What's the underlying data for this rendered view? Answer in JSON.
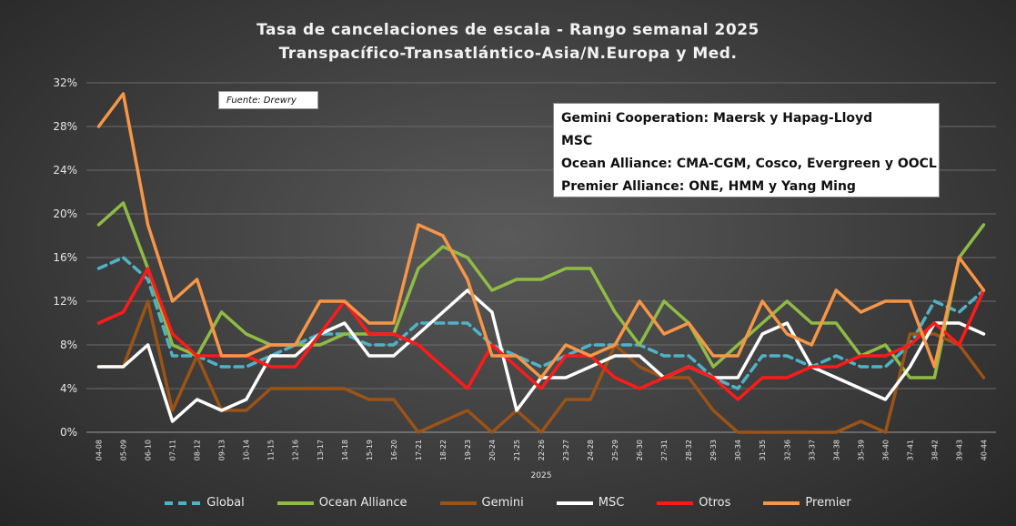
{
  "title": {
    "line1": "Tasa de cancelaciones  de escala  - Rango semanal  2025",
    "line2": "Transpacífico-Transatlántico-Asia/N.Europa  y Med."
  },
  "source": "Fuente: Drewry",
  "alliances": [
    "Gemini Cooperation: Maersk y Hapag-Lloyd",
    "MSC",
    "Ocean Alliance: CMA-CGM, Cosco, Evergreen y OOCL",
    "Premier Alliance: ONE, HMM y Yang Ming"
  ],
  "chart_data": {
    "type": "line",
    "title": "Tasa de cancelaciones  de escala  - Rango semanal  2025",
    "xlabel": "2025",
    "ylabel": "",
    "ylim": [
      0,
      0.32
    ],
    "yticks": [
      "0%",
      "4%",
      "8%",
      "12%",
      "16%",
      "20%",
      "24%",
      "28%",
      "32%"
    ],
    "grid": true,
    "legend_position": "bottom",
    "categories": [
      "04-08",
      "05-09",
      "06-10",
      "07-11",
      "08-12",
      "09-13",
      "10-14",
      "11-15",
      "12-16",
      "13-17",
      "14-18",
      "15-19",
      "16-20",
      "17-21",
      "18-22",
      "19-23",
      "20-24",
      "21-25",
      "22-26",
      "23-27",
      "24-28",
      "25-29",
      "26-30",
      "27-31",
      "28-32",
      "29-33",
      "30-34",
      "31-35",
      "32-36",
      "33-37",
      "34-38",
      "35-39",
      "36-40",
      "37-41",
      "38-42",
      "39-43",
      "40-44"
    ],
    "series": [
      {
        "name": "Global",
        "color": "#4fb3c8",
        "dash": true,
        "values": [
          0.15,
          0.16,
          0.14,
          0.07,
          0.07,
          0.06,
          0.06,
          0.07,
          0.08,
          0.09,
          0.09,
          0.08,
          0.08,
          0.1,
          0.1,
          0.1,
          0.08,
          0.07,
          0.06,
          0.07,
          0.08,
          0.08,
          0.08,
          0.07,
          0.07,
          0.05,
          0.04,
          0.07,
          0.07,
          0.06,
          0.07,
          0.06,
          0.06,
          0.08,
          0.12,
          0.11,
          0.13
        ]
      },
      {
        "name": "Ocean Alliance",
        "color": "#8fbc45",
        "dash": false,
        "values": [
          0.19,
          0.21,
          0.15,
          0.08,
          0.07,
          0.11,
          0.09,
          0.08,
          0.08,
          0.08,
          0.09,
          0.09,
          0.09,
          0.15,
          0.17,
          0.16,
          0.13,
          0.14,
          0.14,
          0.15,
          0.15,
          0.11,
          0.08,
          0.12,
          0.1,
          0.06,
          0.08,
          0.1,
          0.12,
          0.1,
          0.1,
          0.07,
          0.08,
          0.05,
          0.05,
          0.16,
          0.19
        ]
      },
      {
        "name": "Gemini",
        "color": "#9c5316",
        "dash": false,
        "values": [
          0.06,
          0.06,
          0.12,
          0.02,
          0.07,
          0.02,
          0.02,
          0.04,
          0.04,
          0.04,
          0.04,
          0.03,
          0.03,
          0.0,
          0.01,
          0.02,
          0.0,
          0.02,
          0.0,
          0.03,
          0.03,
          0.08,
          0.06,
          0.05,
          0.05,
          0.02,
          0.0,
          0.0,
          0.0,
          0.0,
          0.0,
          0.01,
          0.0,
          0.09,
          0.09,
          0.08,
          0.05
        ]
      },
      {
        "name": "MSC",
        "color": "#ffffff",
        "dash": false,
        "values": [
          0.06,
          0.06,
          0.08,
          0.01,
          0.03,
          0.02,
          0.03,
          0.07,
          0.07,
          0.09,
          0.1,
          0.07,
          0.07,
          0.09,
          0.11,
          0.13,
          0.11,
          0.02,
          0.05,
          0.05,
          0.06,
          0.07,
          0.07,
          0.05,
          0.06,
          0.05,
          0.05,
          0.09,
          0.1,
          0.06,
          0.05,
          0.04,
          0.03,
          0.06,
          0.1,
          0.1,
          0.09
        ]
      },
      {
        "name": "Otros",
        "color": "#ff1a1a",
        "dash": false,
        "values": [
          0.1,
          0.11,
          0.15,
          0.09,
          0.07,
          0.07,
          0.07,
          0.06,
          0.06,
          0.09,
          0.12,
          0.09,
          0.09,
          0.08,
          0.06,
          0.04,
          0.08,
          0.06,
          0.04,
          0.07,
          0.07,
          0.05,
          0.04,
          0.05,
          0.06,
          0.05,
          0.03,
          0.05,
          0.05,
          0.06,
          0.06,
          0.07,
          0.07,
          0.08,
          0.1,
          0.08,
          0.13
        ]
      },
      {
        "name": "Premier",
        "color": "#f79646",
        "dash": false,
        "values": [
          0.28,
          0.31,
          0.19,
          0.12,
          0.14,
          0.07,
          0.07,
          0.08,
          0.08,
          0.12,
          0.12,
          0.1,
          0.1,
          0.19,
          0.18,
          0.14,
          0.07,
          0.07,
          0.05,
          0.08,
          0.07,
          0.08,
          0.12,
          0.09,
          0.1,
          0.07,
          0.07,
          0.12,
          0.09,
          0.08,
          0.13,
          0.11,
          0.12,
          0.12,
          0.06,
          0.16,
          0.13
        ]
      }
    ]
  }
}
